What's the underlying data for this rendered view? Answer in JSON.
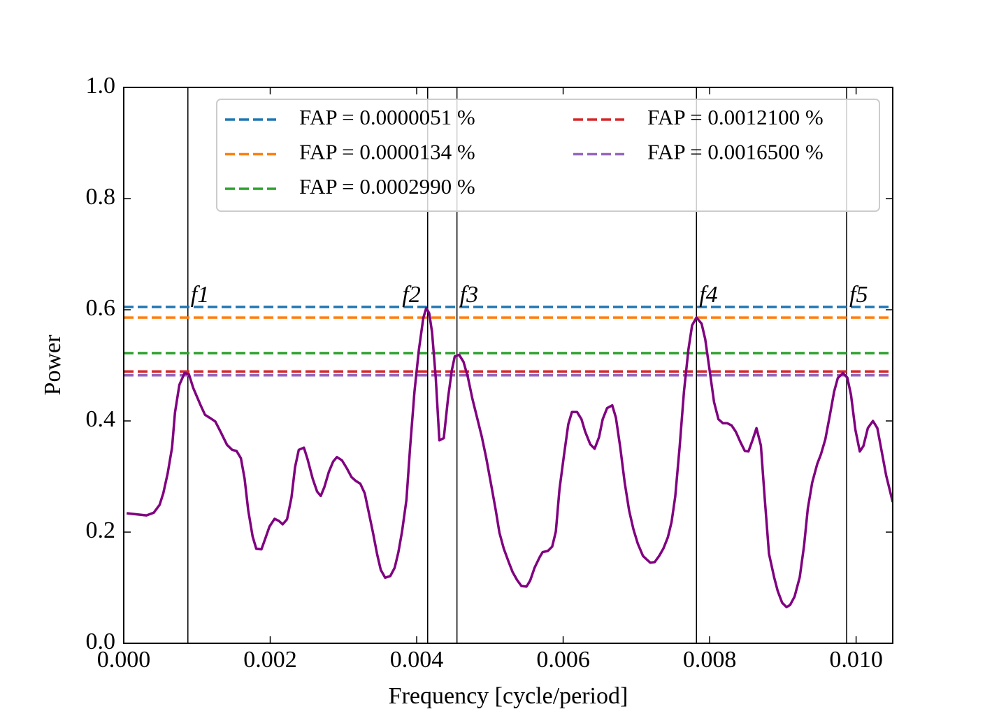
{
  "chart_data": {
    "type": "line",
    "xlabel": "Frequency [cycle/period]",
    "ylabel": "Power",
    "xlim": [
      0,
      0.0105
    ],
    "ylim": [
      0,
      1.0
    ],
    "xticks": [
      {
        "value": 0,
        "label": "0.000"
      },
      {
        "value": 0.002,
        "label": "0.002"
      },
      {
        "value": 0.004,
        "label": "0.004"
      },
      {
        "value": 0.006,
        "label": "0.006"
      },
      {
        "value": 0.008,
        "label": "0.008"
      },
      {
        "value": 0.01,
        "label": "0.010"
      }
    ],
    "yticks": [
      {
        "value": 0,
        "label": "0.0"
      },
      {
        "value": 0.2,
        "label": "0.2"
      },
      {
        "value": 0.4,
        "label": "0.4"
      },
      {
        "value": 0.6,
        "label": "0.6"
      },
      {
        "value": 0.8,
        "label": "0.8"
      },
      {
        "value": 1.0,
        "label": "1.0"
      }
    ],
    "legend": "upper right",
    "series": [
      {
        "color": "#800080",
        "x": [
          4e-05,
          0.00031,
          0.00041,
          0.00049,
          0.00054,
          0.0006,
          0.00066,
          0.0007,
          0.00076,
          0.00083,
          0.00089,
          0.00095,
          0.00105,
          0.00111,
          0.00117,
          0.00125,
          0.00132,
          0.00141,
          0.00148,
          0.00154,
          0.0016,
          0.00165,
          0.0017,
          0.00176,
          0.00181,
          0.00188,
          0.00194,
          0.00199,
          0.00206,
          0.00212,
          0.00217,
          0.00223,
          0.00229,
          0.00234,
          0.00239,
          0.00246,
          0.00251,
          0.00258,
          0.00264,
          0.00269,
          0.00274,
          0.0028,
          0.00286,
          0.00291,
          0.00298,
          0.00305,
          0.00311,
          0.00317,
          0.00323,
          0.00329,
          0.00334,
          0.0034,
          0.00346,
          0.00351,
          0.00357,
          0.00364,
          0.0037,
          0.00375,
          0.0038,
          0.00386,
          0.00391,
          0.00397,
          0.00403,
          0.00409,
          0.00413,
          0.00417,
          0.00421,
          0.00426,
          0.00431,
          0.00437,
          0.00443,
          0.00448,
          0.00452,
          0.00458,
          0.00464,
          0.0047,
          0.00476,
          0.00483,
          0.00489,
          0.00495,
          0.00502,
          0.00508,
          0.00513,
          0.00519,
          0.00526,
          0.00531,
          0.00537,
          0.00543,
          0.0055,
          0.00555,
          0.00561,
          0.00568,
          0.00572,
          0.00579,
          0.00585,
          0.0059,
          0.00595,
          0.00601,
          0.00607,
          0.00612,
          0.00619,
          0.00625,
          0.0063,
          0.00637,
          0.00643,
          0.00649,
          0.00654,
          0.0066,
          0.00667,
          0.00672,
          0.00678,
          0.00684,
          0.0069,
          0.00696,
          0.00702,
          0.00709,
          0.00714,
          0.00719,
          0.00725,
          0.00731,
          0.00737,
          0.00743,
          0.00748,
          0.00753,
          0.00759,
          0.00765,
          0.00771,
          0.00776,
          0.00782,
          0.00789,
          0.00794,
          0.008,
          0.00806,
          0.00812,
          0.00818,
          0.00824,
          0.0083,
          0.00836,
          0.00842,
          0.00848,
          0.00853,
          0.00859,
          0.00864,
          0.0087,
          0.00875,
          0.00881,
          0.00888,
          0.00893,
          0.00899,
          0.00905,
          0.0091,
          0.00916,
          0.00923,
          0.00929,
          0.00934,
          0.0094,
          0.00947,
          0.00952,
          0.00958,
          0.00964,
          0.0097,
          0.00975,
          0.00982,
          0.00988,
          0.00993,
          0.00999,
          0.01005,
          0.0101,
          0.01016,
          0.01023,
          0.01029,
          0.01034,
          0.01041,
          0.0105
        ],
        "values": [
          0.234,
          0.23,
          0.235,
          0.249,
          0.27,
          0.306,
          0.352,
          0.415,
          0.465,
          0.486,
          0.484,
          0.459,
          0.428,
          0.411,
          0.406,
          0.399,
          0.381,
          0.357,
          0.348,
          0.346,
          0.333,
          0.296,
          0.239,
          0.192,
          0.17,
          0.169,
          0.191,
          0.21,
          0.224,
          0.22,
          0.214,
          0.223,
          0.262,
          0.317,
          0.348,
          0.352,
          0.331,
          0.296,
          0.273,
          0.265,
          0.281,
          0.308,
          0.327,
          0.335,
          0.329,
          0.314,
          0.299,
          0.292,
          0.287,
          0.27,
          0.239,
          0.201,
          0.16,
          0.132,
          0.118,
          0.121,
          0.136,
          0.164,
          0.201,
          0.258,
          0.352,
          0.453,
          0.528,
          0.585,
          0.603,
          0.594,
          0.56,
          0.478,
          0.365,
          0.369,
          0.443,
          0.491,
          0.516,
          0.519,
          0.506,
          0.478,
          0.44,
          0.403,
          0.371,
          0.333,
          0.283,
          0.239,
          0.199,
          0.17,
          0.145,
          0.128,
          0.114,
          0.103,
          0.102,
          0.113,
          0.136,
          0.155,
          0.164,
          0.166,
          0.174,
          0.201,
          0.277,
          0.337,
          0.394,
          0.416,
          0.416,
          0.403,
          0.381,
          0.358,
          0.35,
          0.371,
          0.403,
          0.423,
          0.428,
          0.406,
          0.352,
          0.289,
          0.239,
          0.205,
          0.179,
          0.157,
          0.151,
          0.145,
          0.146,
          0.157,
          0.171,
          0.191,
          0.218,
          0.264,
          0.352,
          0.453,
          0.528,
          0.572,
          0.586,
          0.575,
          0.547,
          0.491,
          0.434,
          0.403,
          0.396,
          0.396,
          0.392,
          0.38,
          0.362,
          0.346,
          0.345,
          0.367,
          0.387,
          0.356,
          0.264,
          0.161,
          0.119,
          0.094,
          0.073,
          0.065,
          0.069,
          0.084,
          0.119,
          0.176,
          0.242,
          0.289,
          0.323,
          0.34,
          0.367,
          0.409,
          0.453,
          0.477,
          0.486,
          0.478,
          0.447,
          0.384,
          0.345,
          0.355,
          0.387,
          0.4,
          0.387,
          0.352,
          0.302,
          0.254
        ]
      }
    ],
    "hlines": [
      {
        "name": "FAP = 0.0000051 %",
        "value": 0.605,
        "color": "#1f77b4"
      },
      {
        "name": "FAP = 0.0000134 %",
        "value": 0.586,
        "color": "#ff7f0e"
      },
      {
        "name": "FAP = 0.0002990 %",
        "value": 0.522,
        "color": "#2ca02c"
      },
      {
        "name": "FAP = 0.0012100 %",
        "value": 0.489,
        "color": "#d62728"
      },
      {
        "name": "FAP = 0.0016500 %",
        "value": 0.482,
        "color": "#9467bd"
      }
    ],
    "vlines": [
      {
        "label": "f1",
        "value": 0.000876
      },
      {
        "label": "f2",
        "value": 0.00415
      },
      {
        "label": "f3",
        "value": 0.00455
      },
      {
        "label": "f4",
        "value": 0.00782
      },
      {
        "label": "f5",
        "value": 0.00987
      }
    ]
  }
}
